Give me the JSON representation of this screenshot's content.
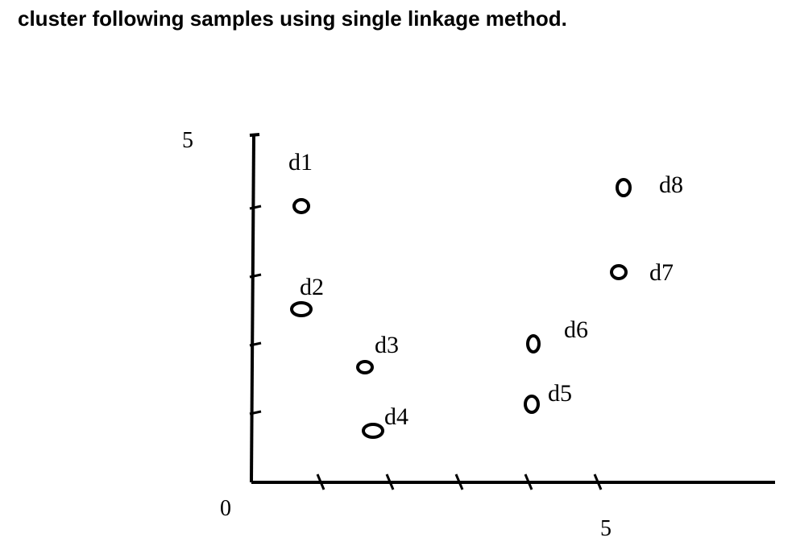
{
  "question": "cluster following samples using single linkage method.",
  "chart_data": {
    "type": "scatter",
    "title": "",
    "xlabel": "",
    "ylabel": "",
    "xlim": [
      0,
      7
    ],
    "ylim": [
      0,
      5
    ],
    "x_ticks": [
      1,
      2,
      3,
      4,
      5
    ],
    "y_ticks": [
      1,
      2,
      3,
      4
    ],
    "tick_labels": {
      "x_origin": "0",
      "x_end": "5",
      "y_top": "5"
    },
    "points": [
      {
        "label": "d1",
        "x": 1,
        "y": 4
      },
      {
        "label": "d2",
        "x": 1,
        "y": 3
      },
      {
        "label": "d3",
        "x": 2,
        "y": 2
      },
      {
        "label": "d4",
        "x": 2,
        "y": 1
      },
      {
        "label": "d5",
        "x": 4,
        "y": 1
      },
      {
        "label": "d6",
        "x": 4,
        "y": 2
      },
      {
        "label": "d7",
        "x": 5,
        "y": 3
      },
      {
        "label": "d8",
        "x": 5,
        "y": 4
      }
    ],
    "marker_color": "#000000",
    "grid": false
  }
}
